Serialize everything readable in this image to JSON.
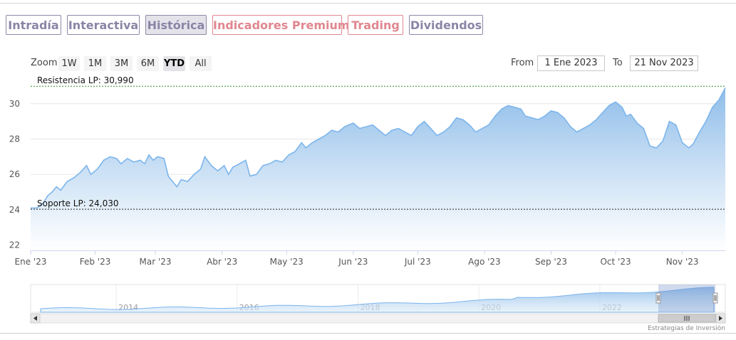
{
  "tabs": [
    {
      "label": "Intradía",
      "active": false,
      "style": "normal"
    },
    {
      "label": "Interactiva",
      "active": false,
      "style": "normal"
    },
    {
      "label": "Histórica",
      "active": true,
      "style": "normal"
    },
    {
      "label": "Indicadores Premium",
      "active": false,
      "style": "red"
    },
    {
      "label": "Trading",
      "active": false,
      "style": "red"
    },
    {
      "label": "Dividendos",
      "active": false,
      "style": "normal"
    }
  ],
  "zoom": {
    "label": "Zoom",
    "buttons": [
      "1W",
      "1M",
      "3M",
      "6M",
      "YTD",
      "All"
    ],
    "selected": "YTD"
  },
  "range": {
    "from_label": "From",
    "from_value": "1 Ene 2023",
    "to_label": "To",
    "to_value": "21 Nov 2023"
  },
  "colors": {
    "line": "#7cb5ec",
    "area_top": "#8fbde9",
    "area_bottom": "#ffffff",
    "tab_text": "#8a85a6",
    "tab_red": "#e0878f",
    "resistance": "#2f8f2f",
    "support": "#222222"
  },
  "chart_data": {
    "type": "area",
    "title": "",
    "xlabel": "",
    "ylabel": "",
    "x_tick_labels": [
      "Ene '23",
      "Feb '23",
      "Mar '23",
      "Abr '23",
      "May '23",
      "Jun '23",
      "Jul '23",
      "Ago '23",
      "Sep '23",
      "Oct '23",
      "Nov '23"
    ],
    "y_ticks": [
      22,
      24,
      26,
      28,
      30
    ],
    "ylim": [
      21.7,
      31.2
    ],
    "xlim": [
      "2023-01-02",
      "2023-11-21"
    ],
    "grid": "horizontal",
    "series": [
      {
        "values": [
          [
            "2023-01-02",
            24.1
          ],
          [
            "2023-01-05",
            24.1
          ],
          [
            "2023-01-08",
            24.4
          ],
          [
            "2023-01-10",
            24.8
          ],
          [
            "2023-01-12",
            25.0
          ],
          [
            "2023-01-14",
            25.3
          ],
          [
            "2023-01-16",
            25.1
          ],
          [
            "2023-01-19",
            25.6
          ],
          [
            "2023-01-22",
            25.8
          ],
          [
            "2023-01-25",
            26.1
          ],
          [
            "2023-01-28",
            26.5
          ],
          [
            "2023-01-30",
            26.0
          ],
          [
            "2023-02-02",
            26.3
          ],
          [
            "2023-02-05",
            26.8
          ],
          [
            "2023-02-08",
            27.0
          ],
          [
            "2023-02-11",
            26.9
          ],
          [
            "2023-02-13",
            26.6
          ],
          [
            "2023-02-16",
            26.9
          ],
          [
            "2023-02-19",
            26.7
          ],
          [
            "2023-02-22",
            26.8
          ],
          [
            "2023-02-24",
            26.6
          ],
          [
            "2023-02-26",
            27.1
          ],
          [
            "2023-02-28",
            26.8
          ],
          [
            "2023-03-02",
            27.0
          ],
          [
            "2023-03-05",
            26.9
          ],
          [
            "2023-03-07",
            25.9
          ],
          [
            "2023-03-09",
            25.6
          ],
          [
            "2023-03-11",
            25.3
          ],
          [
            "2023-03-13",
            25.7
          ],
          [
            "2023-03-16",
            25.6
          ],
          [
            "2023-03-19",
            26.0
          ],
          [
            "2023-03-22",
            26.3
          ],
          [
            "2023-03-24",
            27.0
          ],
          [
            "2023-03-27",
            26.5
          ],
          [
            "2023-03-30",
            26.2
          ],
          [
            "2023-04-02",
            26.5
          ],
          [
            "2023-04-04",
            26.0
          ],
          [
            "2023-04-06",
            26.4
          ],
          [
            "2023-04-09",
            26.6
          ],
          [
            "2023-04-12",
            26.8
          ],
          [
            "2023-04-14",
            25.9
          ],
          [
            "2023-04-17",
            26.0
          ],
          [
            "2023-04-20",
            26.5
          ],
          [
            "2023-04-23",
            26.6
          ],
          [
            "2023-04-26",
            26.8
          ],
          [
            "2023-04-29",
            26.7
          ],
          [
            "2023-05-02",
            27.1
          ],
          [
            "2023-05-05",
            27.3
          ],
          [
            "2023-05-08",
            27.8
          ],
          [
            "2023-05-10",
            27.5
          ],
          [
            "2023-05-13",
            27.8
          ],
          [
            "2023-05-16",
            28.0
          ],
          [
            "2023-05-19",
            28.2
          ],
          [
            "2023-05-22",
            28.5
          ],
          [
            "2023-05-25",
            28.4
          ],
          [
            "2023-05-28",
            28.7
          ],
          [
            "2023-06-01",
            28.9
          ],
          [
            "2023-06-04",
            28.6
          ],
          [
            "2023-06-07",
            28.7
          ],
          [
            "2023-06-10",
            28.8
          ],
          [
            "2023-06-13",
            28.5
          ],
          [
            "2023-06-16",
            28.2
          ],
          [
            "2023-06-19",
            28.5
          ],
          [
            "2023-06-22",
            28.6
          ],
          [
            "2023-06-25",
            28.4
          ],
          [
            "2023-06-28",
            28.2
          ],
          [
            "2023-07-01",
            28.7
          ],
          [
            "2023-07-04",
            29.0
          ],
          [
            "2023-07-07",
            28.6
          ],
          [
            "2023-07-10",
            28.2
          ],
          [
            "2023-07-13",
            28.4
          ],
          [
            "2023-07-16",
            28.7
          ],
          [
            "2023-07-19",
            29.2
          ],
          [
            "2023-07-22",
            29.1
          ],
          [
            "2023-07-25",
            28.8
          ],
          [
            "2023-07-28",
            28.4
          ],
          [
            "2023-07-31",
            28.6
          ],
          [
            "2023-08-03",
            28.8
          ],
          [
            "2023-08-06",
            29.3
          ],
          [
            "2023-08-09",
            29.7
          ],
          [
            "2023-08-12",
            29.9
          ],
          [
            "2023-08-15",
            29.8
          ],
          [
            "2023-08-18",
            29.7
          ],
          [
            "2023-08-20",
            29.3
          ],
          [
            "2023-08-23",
            29.2
          ],
          [
            "2023-08-26",
            29.1
          ],
          [
            "2023-08-29",
            29.3
          ],
          [
            "2023-09-01",
            29.6
          ],
          [
            "2023-09-04",
            29.5
          ],
          [
            "2023-09-07",
            29.2
          ],
          [
            "2023-09-10",
            28.7
          ],
          [
            "2023-09-13",
            28.4
          ],
          [
            "2023-09-16",
            28.6
          ],
          [
            "2023-09-19",
            28.8
          ],
          [
            "2023-09-22",
            29.1
          ],
          [
            "2023-09-25",
            29.5
          ],
          [
            "2023-09-28",
            29.9
          ],
          [
            "2023-10-01",
            30.1
          ],
          [
            "2023-10-04",
            29.8
          ],
          [
            "2023-10-06",
            29.3
          ],
          [
            "2023-10-08",
            29.4
          ],
          [
            "2023-10-11",
            28.9
          ],
          [
            "2023-10-14",
            28.6
          ],
          [
            "2023-10-17",
            27.6
          ],
          [
            "2023-10-20",
            27.5
          ],
          [
            "2023-10-23",
            27.9
          ],
          [
            "2023-10-26",
            29.0
          ],
          [
            "2023-10-29",
            28.8
          ],
          [
            "2023-11-01",
            27.8
          ],
          [
            "2023-11-04",
            27.5
          ],
          [
            "2023-11-06",
            27.7
          ],
          [
            "2023-11-09",
            28.4
          ],
          [
            "2023-11-12",
            29.0
          ],
          [
            "2023-11-15",
            29.8
          ],
          [
            "2023-11-18",
            30.2
          ],
          [
            "2023-11-21",
            30.9
          ]
        ]
      }
    ],
    "plot_lines": [
      {
        "label": "Resistencia LP: 30,990",
        "value": 30.99,
        "style": "dashed"
      },
      {
        "label": "Soporte LP: 24,030",
        "value": 24.03,
        "style": "dashed"
      }
    ],
    "navigator": {
      "x_tick_labels": [
        "2014",
        "2016",
        "2018",
        "2020",
        "2022"
      ],
      "selected_range": [
        "2023-01-02",
        "2023-11-21"
      ]
    },
    "credits": "Estrategias de Inversión"
  }
}
